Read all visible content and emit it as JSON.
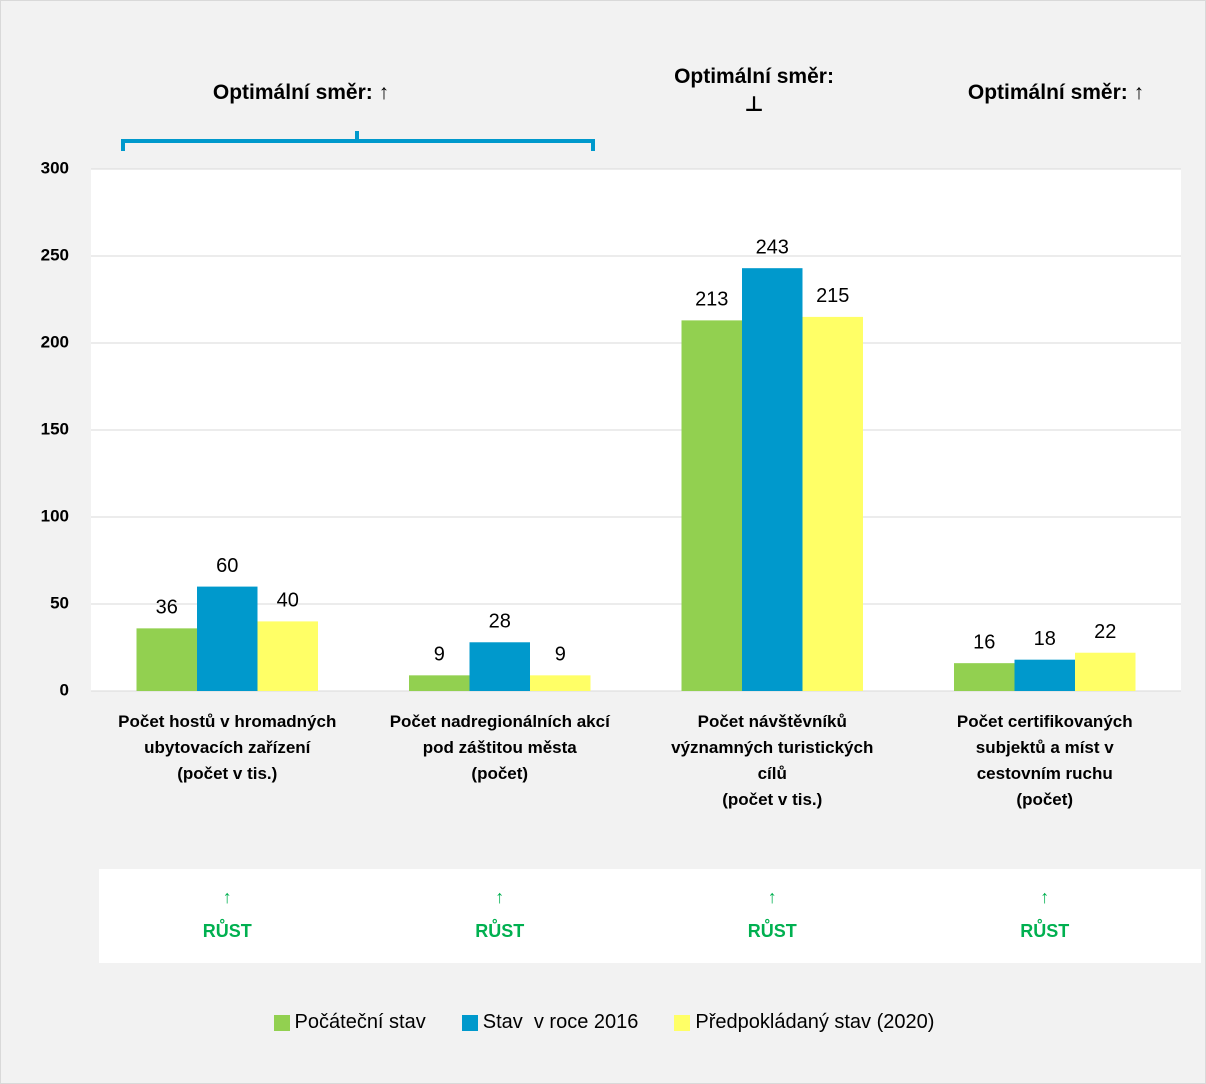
{
  "chart_data": {
    "type": "bar",
    "categories": [
      "Počet hostů v hromadných\nubytovacích zařízení\n(počet v tis.)",
      "Počet nadregionálních akcí\npod záštitou města\n(počet)",
      "Počet návštěvníků\nvýznamných turistických\ncílů\n(počet v tis.)",
      "Počet certifikovaných\nsubjektů a míst v\ncestovním ruchu\n(počet)"
    ],
    "series": [
      {
        "name": "Počáteční stav",
        "color": "#92d050",
        "values": [
          36,
          9,
          213,
          16
        ]
      },
      {
        "name": "Stav  v roce 2016",
        "color": "#0099cc",
        "values": [
          60,
          28,
          243,
          18
        ]
      },
      {
        "name": "Předpokládaný stav (2020)",
        "color": "#ffff66",
        "values": [
          40,
          9,
          215,
          22
        ]
      }
    ],
    "ylim": [
      0,
      300
    ],
    "yticks": [
      0,
      50,
      100,
      150,
      200,
      250,
      300
    ],
    "grid": true,
    "annotations": [
      "Optimální směr: ↑",
      "Optimální směr:\n⊥",
      "Optimální směr: ↑"
    ],
    "indicators": [
      {
        "arrow": "↑",
        "label": "RŮST"
      },
      {
        "arrow": "↑",
        "label": "RŮST"
      },
      {
        "arrow": "↑",
        "label": "RŮST"
      },
      {
        "arrow": "↑",
        "label": "RŮST"
      }
    ],
    "legend": "bottom"
  }
}
